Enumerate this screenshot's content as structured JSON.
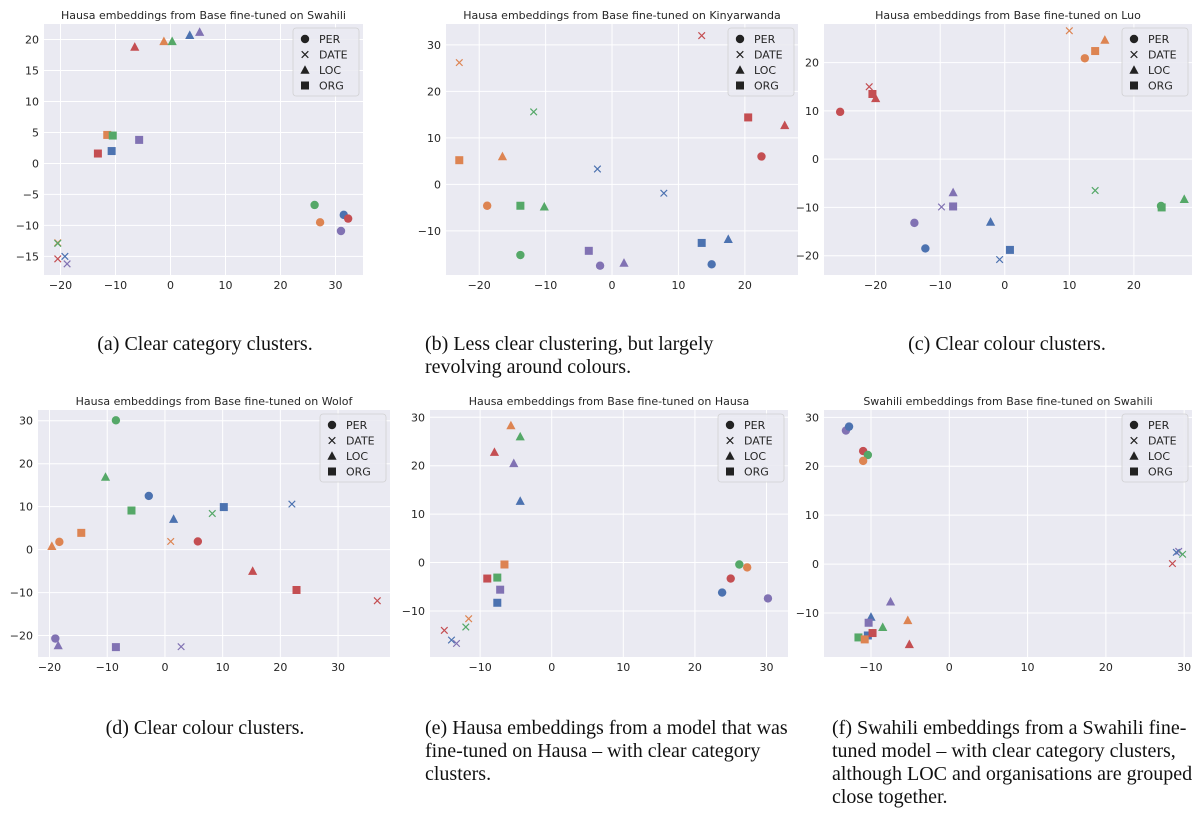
{
  "colors": {
    "blue": "#4C72B0",
    "orange": "#DD8452",
    "green": "#55A868",
    "red": "#C44E52",
    "purple": "#8172B3",
    "plot_bg": "#EAEAF2",
    "grid": "#FFFFFF"
  },
  "legend": [
    "PER",
    "DATE",
    "LOC",
    "ORG"
  ],
  "chart_data": [
    {
      "type": "scatter",
      "title": "Hausa embeddings from Base fine-tuned on Swahili",
      "caption": "(a) Clear category clusters.",
      "xlim": [
        -23,
        35
      ],
      "ylim": [
        -18,
        22.5
      ],
      "xticks": [
        -20,
        -10,
        0,
        10,
        20,
        30
      ],
      "yticks": [
        -15,
        -10,
        -5,
        0,
        5,
        10,
        15,
        20
      ],
      "legend_placement": "top-right",
      "points": [
        {
          "x": 26.2,
          "y": -6.7,
          "category": "PER",
          "color": "green"
        },
        {
          "x": 27.2,
          "y": -9.5,
          "category": "PER",
          "color": "orange"
        },
        {
          "x": 31.5,
          "y": -8.3,
          "category": "PER",
          "color": "blue"
        },
        {
          "x": 32.3,
          "y": -8.9,
          "category": "PER",
          "color": "red"
        },
        {
          "x": 31.0,
          "y": -10.9,
          "category": "PER",
          "color": "purple"
        },
        {
          "x": -20.5,
          "y": -12.8,
          "category": "DATE",
          "color": "orange"
        },
        {
          "x": -20.5,
          "y": -12.9,
          "category": "DATE",
          "color": "green"
        },
        {
          "x": -20.5,
          "y": -15.4,
          "category": "DATE",
          "color": "red"
        },
        {
          "x": -19.2,
          "y": -15.0,
          "category": "DATE",
          "color": "blue"
        },
        {
          "x": -18.8,
          "y": -16.2,
          "category": "DATE",
          "color": "purple"
        },
        {
          "x": -6.5,
          "y": 18.8,
          "category": "LOC",
          "color": "red"
        },
        {
          "x": -1.2,
          "y": 19.7,
          "category": "LOC",
          "color": "orange"
        },
        {
          "x": 0.3,
          "y": 19.7,
          "category": "LOC",
          "color": "green"
        },
        {
          "x": 3.5,
          "y": 20.7,
          "category": "LOC",
          "color": "blue"
        },
        {
          "x": 5.3,
          "y": 21.2,
          "category": "LOC",
          "color": "purple"
        },
        {
          "x": -11.5,
          "y": 4.6,
          "category": "ORG",
          "color": "orange"
        },
        {
          "x": -10.5,
          "y": 4.5,
          "category": "ORG",
          "color": "green"
        },
        {
          "x": -13.2,
          "y": 1.6,
          "category": "ORG",
          "color": "red"
        },
        {
          "x": -10.7,
          "y": 2.0,
          "category": "ORG",
          "color": "blue"
        },
        {
          "x": -5.7,
          "y": 3.8,
          "category": "ORG",
          "color": "purple"
        }
      ]
    },
    {
      "type": "scatter",
      "title": "Hausa embeddings from Base fine-tuned on Kinyarwanda",
      "caption": "(b) Less clear clustering, but largely revolving around colours.",
      "xlim": [
        -25,
        28
      ],
      "ylim": [
        -19.5,
        34.5
      ],
      "xticks": [
        -20,
        -10,
        0,
        10,
        20
      ],
      "yticks": [
        -10,
        0,
        10,
        20,
        30
      ],
      "legend_placement": "top-right",
      "points": [
        {
          "x": -18.8,
          "y": -4.6,
          "category": "PER",
          "color": "orange"
        },
        {
          "x": -13.8,
          "y": -15.2,
          "category": "PER",
          "color": "green"
        },
        {
          "x": -1.8,
          "y": -17.5,
          "category": "PER",
          "color": "purple"
        },
        {
          "x": 15.0,
          "y": -17.2,
          "category": "PER",
          "color": "blue"
        },
        {
          "x": 22.5,
          "y": 6.0,
          "category": "PER",
          "color": "red"
        },
        {
          "x": -23.0,
          "y": 26.2,
          "category": "DATE",
          "color": "orange"
        },
        {
          "x": -11.8,
          "y": 15.6,
          "category": "DATE",
          "color": "green"
        },
        {
          "x": -2.2,
          "y": 3.3,
          "category": "DATE",
          "color": "blue"
        },
        {
          "x": 7.8,
          "y": -1.9,
          "category": "DATE",
          "color": "blue"
        },
        {
          "x": 13.5,
          "y": 32.0,
          "category": "DATE",
          "color": "red"
        },
        {
          "x": -16.5,
          "y": 6.0,
          "category": "LOC",
          "color": "orange"
        },
        {
          "x": -10.2,
          "y": -4.8,
          "category": "LOC",
          "color": "green"
        },
        {
          "x": 1.8,
          "y": -16.9,
          "category": "LOC",
          "color": "purple"
        },
        {
          "x": 17.5,
          "y": -11.8,
          "category": "LOC",
          "color": "blue"
        },
        {
          "x": 26.0,
          "y": 12.7,
          "category": "LOC",
          "color": "red"
        },
        {
          "x": -23.0,
          "y": 5.2,
          "category": "ORG",
          "color": "orange"
        },
        {
          "x": -13.8,
          "y": -4.6,
          "category": "ORG",
          "color": "green"
        },
        {
          "x": -3.5,
          "y": -14.3,
          "category": "ORG",
          "color": "purple"
        },
        {
          "x": 13.5,
          "y": -12.6,
          "category": "ORG",
          "color": "blue"
        },
        {
          "x": 20.5,
          "y": 14.4,
          "category": "ORG",
          "color": "red"
        }
      ]
    },
    {
      "type": "scatter",
      "title": "Hausa embeddings from Base fine-tuned on Luo",
      "caption": "(c) Clear colour clusters.",
      "xlim": [
        -28,
        29
      ],
      "ylim": [
        -24,
        28
      ],
      "xticks": [
        -20,
        -10,
        0,
        10,
        20
      ],
      "yticks": [
        -20,
        -10,
        0,
        10,
        20
      ],
      "legend_placement": "top-right",
      "points": [
        {
          "x": -25.5,
          "y": 9.8,
          "category": "PER",
          "color": "red"
        },
        {
          "x": -14.0,
          "y": -13.2,
          "category": "PER",
          "color": "purple"
        },
        {
          "x": -12.3,
          "y": -18.5,
          "category": "PER",
          "color": "blue"
        },
        {
          "x": 12.4,
          "y": 20.9,
          "category": "PER",
          "color": "orange"
        },
        {
          "x": 24.2,
          "y": -9.7,
          "category": "PER",
          "color": "green"
        },
        {
          "x": -21.0,
          "y": 15.0,
          "category": "DATE",
          "color": "red"
        },
        {
          "x": -9.8,
          "y": -9.9,
          "category": "DATE",
          "color": "purple"
        },
        {
          "x": -0.8,
          "y": -20.8,
          "category": "DATE",
          "color": "blue"
        },
        {
          "x": 10.0,
          "y": 26.6,
          "category": "DATE",
          "color": "orange"
        },
        {
          "x": 14.0,
          "y": -6.5,
          "category": "DATE",
          "color": "green"
        },
        {
          "x": -20.0,
          "y": 12.6,
          "category": "LOC",
          "color": "red"
        },
        {
          "x": -8.0,
          "y": -6.9,
          "category": "LOC",
          "color": "purple"
        },
        {
          "x": -2.2,
          "y": -13.0,
          "category": "LOC",
          "color": "blue"
        },
        {
          "x": 15.5,
          "y": 24.7,
          "category": "LOC",
          "color": "orange"
        },
        {
          "x": 27.8,
          "y": -8.3,
          "category": "LOC",
          "color": "green"
        },
        {
          "x": -20.5,
          "y": 13.5,
          "category": "ORG",
          "color": "red"
        },
        {
          "x": -8.0,
          "y": -9.8,
          "category": "ORG",
          "color": "purple"
        },
        {
          "x": 0.8,
          "y": -18.8,
          "category": "ORG",
          "color": "blue"
        },
        {
          "x": 14.0,
          "y": 22.4,
          "category": "ORG",
          "color": "orange"
        },
        {
          "x": 24.3,
          "y": -10.0,
          "category": "ORG",
          "color": "green"
        }
      ]
    },
    {
      "type": "scatter",
      "title": "Hausa embeddings from Base fine-tuned on Wolof",
      "caption": "(d) Clear colour clusters.",
      "xlim": [
        -22,
        39
      ],
      "ylim": [
        -25,
        32.5
      ],
      "xticks": [
        -20,
        -10,
        0,
        10,
        20,
        30
      ],
      "yticks": [
        -20,
        -10,
        0,
        10,
        20,
        30
      ],
      "legend_placement": "top-right",
      "points": [
        {
          "x": -8.5,
          "y": 30.1,
          "category": "PER",
          "color": "green"
        },
        {
          "x": -2.8,
          "y": 12.5,
          "category": "PER",
          "color": "blue"
        },
        {
          "x": -18.3,
          "y": 1.8,
          "category": "PER",
          "color": "orange"
        },
        {
          "x": 5.7,
          "y": 1.9,
          "category": "PER",
          "color": "red"
        },
        {
          "x": -19.0,
          "y": -20.7,
          "category": "PER",
          "color": "purple"
        },
        {
          "x": 8.2,
          "y": 8.4,
          "category": "DATE",
          "color": "green"
        },
        {
          "x": 22.0,
          "y": 10.6,
          "category": "DATE",
          "color": "blue"
        },
        {
          "x": 1.0,
          "y": 1.9,
          "category": "DATE",
          "color": "orange"
        },
        {
          "x": 36.8,
          "y": -11.9,
          "category": "DATE",
          "color": "red"
        },
        {
          "x": 2.8,
          "y": -22.6,
          "category": "DATE",
          "color": "purple"
        },
        {
          "x": -10.3,
          "y": 16.9,
          "category": "LOC",
          "color": "green"
        },
        {
          "x": 1.5,
          "y": 7.1,
          "category": "LOC",
          "color": "blue"
        },
        {
          "x": -19.6,
          "y": 0.8,
          "category": "LOC",
          "color": "orange"
        },
        {
          "x": 15.2,
          "y": -5.0,
          "category": "LOC",
          "color": "red"
        },
        {
          "x": -18.5,
          "y": -22.3,
          "category": "LOC",
          "color": "purple"
        },
        {
          "x": -5.8,
          "y": 9.1,
          "category": "ORG",
          "color": "green"
        },
        {
          "x": 10.2,
          "y": 9.9,
          "category": "ORG",
          "color": "blue"
        },
        {
          "x": -14.5,
          "y": 3.9,
          "category": "ORG",
          "color": "orange"
        },
        {
          "x": 22.8,
          "y": -9.4,
          "category": "ORG",
          "color": "red"
        },
        {
          "x": -8.5,
          "y": -22.7,
          "category": "ORG",
          "color": "purple"
        }
      ]
    },
    {
      "type": "scatter",
      "title": "Hausa embeddings from Base fine-tuned on Hausa",
      "caption": "(e) Hausa embeddings from a model that was fine-tuned on Hausa – with clear category clusters.",
      "xlim": [
        -17,
        33
      ],
      "ylim": [
        -19.5,
        31.5
      ],
      "xticks": [
        -10,
        0,
        10,
        20,
        30
      ],
      "yticks": [
        -10,
        0,
        10,
        20,
        30
      ],
      "legend_placement": "top-right",
      "points": [
        {
          "x": 23.8,
          "y": -6.2,
          "category": "PER",
          "color": "blue"
        },
        {
          "x": 25.0,
          "y": -3.3,
          "category": "PER",
          "color": "red"
        },
        {
          "x": 26.2,
          "y": -0.4,
          "category": "PER",
          "color": "green"
        },
        {
          "x": 27.3,
          "y": -1.0,
          "category": "PER",
          "color": "orange"
        },
        {
          "x": 30.2,
          "y": -7.4,
          "category": "PER",
          "color": "purple"
        },
        {
          "x": -15.0,
          "y": -14.0,
          "category": "DATE",
          "color": "red"
        },
        {
          "x": -14.0,
          "y": -16.0,
          "category": "DATE",
          "color": "blue"
        },
        {
          "x": -13.3,
          "y": -16.7,
          "category": "DATE",
          "color": "purple"
        },
        {
          "x": -12.0,
          "y": -13.3,
          "category": "DATE",
          "color": "green"
        },
        {
          "x": -11.6,
          "y": -11.6,
          "category": "DATE",
          "color": "orange"
        },
        {
          "x": -5.7,
          "y": 28.3,
          "category": "LOC",
          "color": "orange"
        },
        {
          "x": -4.4,
          "y": 26.0,
          "category": "LOC",
          "color": "green"
        },
        {
          "x": -8.0,
          "y": 22.8,
          "category": "LOC",
          "color": "red"
        },
        {
          "x": -5.3,
          "y": 20.5,
          "category": "LOC",
          "color": "purple"
        },
        {
          "x": -4.4,
          "y": 12.7,
          "category": "LOC",
          "color": "blue"
        },
        {
          "x": -6.6,
          "y": -0.4,
          "category": "ORG",
          "color": "orange"
        },
        {
          "x": -9.0,
          "y": -3.3,
          "category": "ORG",
          "color": "red"
        },
        {
          "x": -7.6,
          "y": -3.1,
          "category": "ORG",
          "color": "green"
        },
        {
          "x": -7.2,
          "y": -5.6,
          "category": "ORG",
          "color": "purple"
        },
        {
          "x": -7.6,
          "y": -8.3,
          "category": "ORG",
          "color": "blue"
        }
      ]
    },
    {
      "type": "scatter",
      "title": "Swahili embeddings from Base fine-tuned on Swahili",
      "caption": "(f) Swahili embeddings from a Swahili fine-tuned model – with clear category clusters, although LOC and organisations are grouped close together.",
      "xlim": [
        -16,
        31
      ],
      "ylim": [
        -19,
        31.5
      ],
      "xticks": [
        -10,
        0,
        10,
        20,
        30
      ],
      "yticks": [
        -10,
        0,
        10,
        20,
        30
      ],
      "legend_placement": "top-right",
      "points": [
        {
          "x": -13.2,
          "y": 27.3,
          "category": "PER",
          "color": "purple"
        },
        {
          "x": -12.8,
          "y": 28.1,
          "category": "PER",
          "color": "blue"
        },
        {
          "x": -11.0,
          "y": 23.1,
          "category": "PER",
          "color": "red"
        },
        {
          "x": -10.4,
          "y": 22.3,
          "category": "PER",
          "color": "green"
        },
        {
          "x": -11.0,
          "y": 21.1,
          "category": "PER",
          "color": "orange"
        },
        {
          "x": 28.5,
          "y": 0.1,
          "category": "DATE",
          "color": "red"
        },
        {
          "x": 29.3,
          "y": 2.6,
          "category": "DATE",
          "color": "purple"
        },
        {
          "x": 29.8,
          "y": 2.0,
          "category": "DATE",
          "color": "green"
        },
        {
          "x": 29.0,
          "y": 2.4,
          "category": "DATE",
          "color": "blue"
        },
        {
          "x": -10.0,
          "y": -10.8,
          "category": "LOC",
          "color": "blue"
        },
        {
          "x": -7.5,
          "y": -7.7,
          "category": "LOC",
          "color": "purple"
        },
        {
          "x": -8.5,
          "y": -12.9,
          "category": "LOC",
          "color": "green"
        },
        {
          "x": -5.3,
          "y": -11.5,
          "category": "LOC",
          "color": "orange"
        },
        {
          "x": -5.1,
          "y": -16.4,
          "category": "LOC",
          "color": "red"
        },
        {
          "x": -10.3,
          "y": -12.0,
          "category": "ORG",
          "color": "purple"
        },
        {
          "x": -11.6,
          "y": -15.0,
          "category": "ORG",
          "color": "green"
        },
        {
          "x": -10.4,
          "y": -14.6,
          "category": "ORG",
          "color": "blue"
        },
        {
          "x": -10.8,
          "y": -15.4,
          "category": "ORG",
          "color": "orange"
        },
        {
          "x": -9.8,
          "y": -14.1,
          "category": "ORG",
          "color": "red"
        }
      ]
    }
  ]
}
